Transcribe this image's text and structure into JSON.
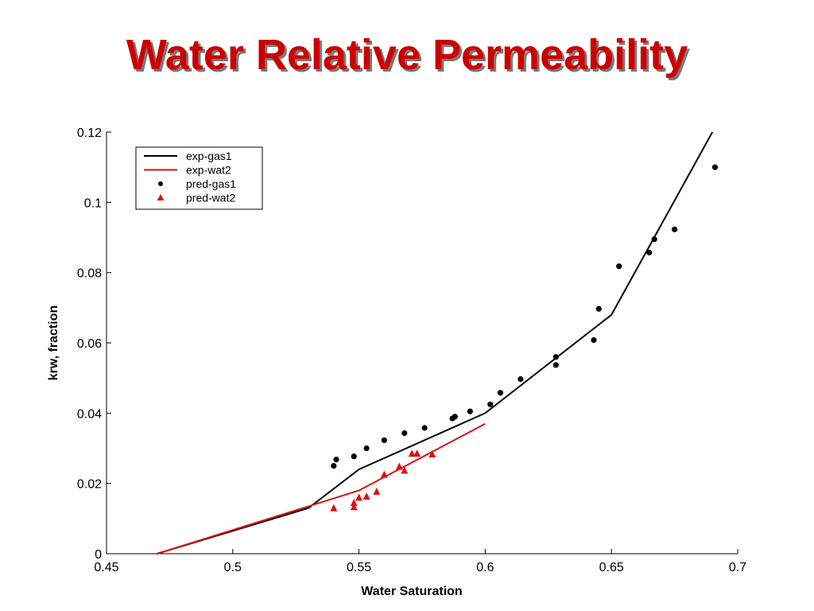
{
  "slide": {
    "title": "Water Relative Permeability"
  },
  "colors": {
    "title": "#cc0000",
    "gas": "#000000",
    "wat": "#dd1111"
  },
  "chart_data": {
    "type": "line",
    "title": "",
    "xlabel": "Water Saturation",
    "ylabel": "krw, fraction",
    "xlim": [
      0.45,
      0.7
    ],
    "ylim": [
      0,
      0.12
    ],
    "x_ticks": [
      "0.45",
      "0.5",
      "0.55",
      "0.6",
      "0.65",
      "0.7"
    ],
    "y_ticks": [
      "0",
      "0.02",
      "0.04",
      "0.06",
      "0.08",
      "0.1",
      "0.12"
    ],
    "grid": false,
    "legend_position": "top-left",
    "series": [
      {
        "name": "exp-gas1",
        "kind": "line",
        "color": "#000000",
        "points": [
          [
            0.47,
            0.0
          ],
          [
            0.53,
            0.013
          ],
          [
            0.55,
            0.024
          ],
          [
            0.6,
            0.04
          ],
          [
            0.65,
            0.068
          ],
          [
            0.69,
            0.12
          ]
        ]
      },
      {
        "name": "exp-wat2",
        "kind": "line",
        "color": "#dd1111",
        "points": [
          [
            0.47,
            0.0
          ],
          [
            0.53,
            0.0135
          ],
          [
            0.55,
            0.018
          ],
          [
            0.6,
            0.037
          ]
        ]
      },
      {
        "name": "pred-gas1",
        "kind": "scatter",
        "marker": "dot",
        "color": "#000000",
        "points": [
          [
            0.54,
            0.025
          ],
          [
            0.541,
            0.0268
          ],
          [
            0.548,
            0.0277
          ],
          [
            0.553,
            0.03
          ],
          [
            0.56,
            0.0323
          ],
          [
            0.568,
            0.0343
          ],
          [
            0.576,
            0.0358
          ],
          [
            0.587,
            0.0385
          ],
          [
            0.588,
            0.039
          ],
          [
            0.594,
            0.0405
          ],
          [
            0.602,
            0.0425
          ],
          [
            0.606,
            0.0458
          ],
          [
            0.614,
            0.0497
          ],
          [
            0.628,
            0.0537
          ],
          [
            0.628,
            0.056
          ],
          [
            0.643,
            0.0608
          ],
          [
            0.645,
            0.0697
          ],
          [
            0.653,
            0.0818
          ],
          [
            0.665,
            0.0857
          ],
          [
            0.667,
            0.0895
          ],
          [
            0.675,
            0.0923
          ],
          [
            0.691,
            0.11
          ]
        ]
      },
      {
        "name": "pred-wat2",
        "kind": "scatter",
        "marker": "triangle",
        "color": "#dd1111",
        "points": [
          [
            0.54,
            0.013
          ],
          [
            0.548,
            0.0133
          ],
          [
            0.548,
            0.0145
          ],
          [
            0.55,
            0.016
          ],
          [
            0.553,
            0.0163
          ],
          [
            0.557,
            0.0177
          ],
          [
            0.56,
            0.0225
          ],
          [
            0.566,
            0.0248
          ],
          [
            0.568,
            0.0237
          ],
          [
            0.571,
            0.0285
          ],
          [
            0.573,
            0.0285
          ],
          [
            0.579,
            0.0283
          ]
        ]
      }
    ]
  }
}
